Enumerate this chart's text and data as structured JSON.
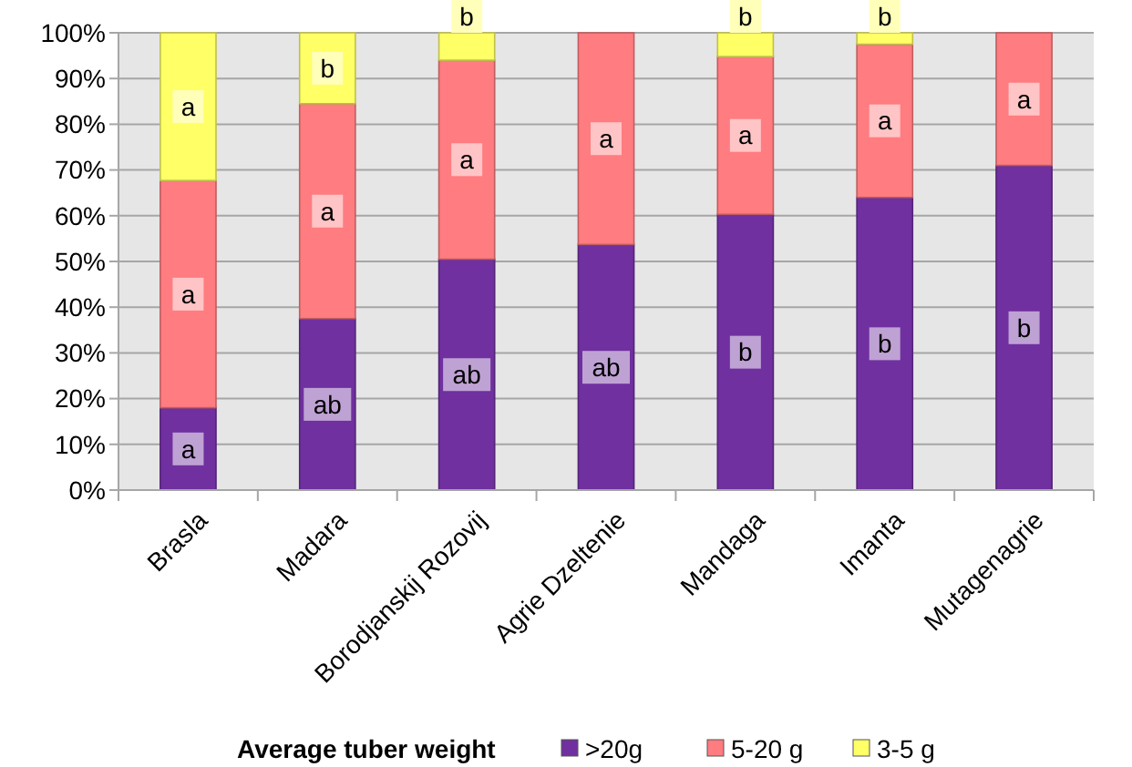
{
  "chart_data": {
    "type": "bar",
    "stacked": true,
    "categories": [
      "Brasla",
      "Madara",
      "Borodjanskij Rozovij",
      "Agrie Dzeltenie",
      "Mandaga",
      "Imanta",
      "Mutagenagrie"
    ],
    "series": [
      {
        "name": ">20g",
        "color": "#7030a0",
        "values": [
          18,
          37.5,
          50.5,
          53.7,
          60.3,
          64,
          71
        ],
        "value_labels": [
          "a",
          "ab",
          "ab",
          "ab",
          "b",
          "b",
          "b"
        ]
      },
      {
        "name": "5-20 g",
        "color": "#ff7c80",
        "values": [
          49.7,
          47,
          43.5,
          46.3,
          34.5,
          33.5,
          29
        ],
        "value_labels": [
          "a",
          "a",
          "a",
          "a",
          "a",
          "a",
          "a"
        ]
      },
      {
        "name": "3-5 g",
        "color": "#ffff66",
        "values": [
          32.3,
          15.5,
          6,
          0,
          5.2,
          2.5,
          0
        ],
        "value_labels": [
          "a",
          "b",
          "b",
          null,
          "b",
          "b",
          null
        ]
      }
    ],
    "ylim": [
      0,
      100
    ],
    "yticks": [
      {
        "value": 0,
        "label": "0%"
      },
      {
        "value": 10,
        "label": "10%"
      },
      {
        "value": 20,
        "label": "20%"
      },
      {
        "value": 30,
        "label": "30%"
      },
      {
        "value": 40,
        "label": "40%"
      },
      {
        "value": 50,
        "label": "50%"
      },
      {
        "value": 60,
        "label": "60%"
      },
      {
        "value": 70,
        "label": "70%"
      },
      {
        "value": 80,
        "label": "80%"
      },
      {
        "value": 90,
        "label": "90%"
      },
      {
        "value": 100,
        "label": "100%"
      }
    ],
    "grid": "y",
    "legend": "bottom",
    "legend_title": "Average tuber weight"
  }
}
